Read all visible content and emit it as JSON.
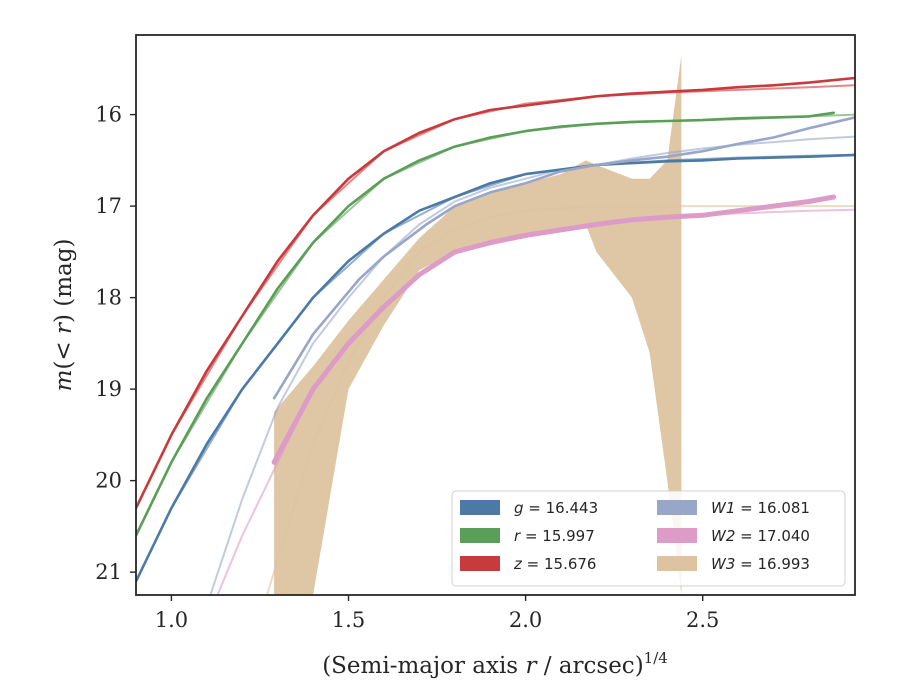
{
  "chart_data": {
    "type": "line",
    "title": "",
    "xlabel": "(Semi-major axis r / arcsec)1/4",
    "xlabel_parts": {
      "pre": "(Semi-major axis ",
      "var": "r",
      "mid": " / arcsec)",
      "sup": "1/4"
    },
    "ylabel": "m(< r) (mag)",
    "xlim": [
      0.9,
      2.93
    ],
    "ylim": [
      21.25,
      15.13
    ],
    "y_inverted": true,
    "grid": false,
    "legend_position": "lower-right",
    "legend_columns": 2,
    "xticks": [
      1.0,
      1.5,
      2.0,
      2.5
    ],
    "xtick_labels": [
      "1.0",
      "1.5",
      "2.0",
      "2.5"
    ],
    "yticks": [
      16,
      17,
      18,
      19,
      20,
      21
    ],
    "ytick_labels": [
      "16",
      "17",
      "18",
      "19",
      "20",
      "21"
    ],
    "series": [
      {
        "name": "g = 16.443",
        "legend_var": "g",
        "legend_value": "16.443",
        "color": "#4c7aa6",
        "data_x": [
          0.9,
          1.0,
          1.1,
          1.2,
          1.3,
          1.4,
          1.5,
          1.6,
          1.7,
          1.8,
          1.9,
          2.0,
          2.1,
          2.2,
          2.3,
          2.4,
          2.5,
          2.6,
          2.7,
          2.8,
          2.93
        ],
        "data_y": [
          21.1,
          20.3,
          19.6,
          19.0,
          18.5,
          18.0,
          17.6,
          17.3,
          17.05,
          16.9,
          16.75,
          16.65,
          16.6,
          16.55,
          16.53,
          16.51,
          16.5,
          16.48,
          16.47,
          16.46,
          16.44
        ],
        "model_x": [
          0.9,
          1.0,
          1.2,
          1.4,
          1.6,
          1.8,
          2.0,
          2.2,
          2.4,
          2.6,
          2.8,
          2.93
        ],
        "model_y": [
          21.1,
          20.3,
          19.0,
          18.0,
          17.3,
          16.9,
          16.65,
          16.55,
          16.5,
          16.47,
          16.45,
          16.44
        ]
      },
      {
        "name": "r = 15.997",
        "legend_var": "r",
        "legend_value": "15.997",
        "color": "#5a9e58",
        "data_x": [
          0.9,
          1.0,
          1.1,
          1.2,
          1.3,
          1.4,
          1.5,
          1.6,
          1.7,
          1.8,
          1.9,
          2.0,
          2.1,
          2.2,
          2.3,
          2.4,
          2.5,
          2.6,
          2.7,
          2.8,
          2.87
        ],
        "data_y": [
          20.6,
          19.8,
          19.1,
          18.5,
          17.9,
          17.4,
          17.0,
          16.7,
          16.5,
          16.35,
          16.25,
          16.18,
          16.13,
          16.1,
          16.08,
          16.07,
          16.06,
          16.04,
          16.03,
          16.02,
          15.98
        ],
        "model_x": [
          0.9,
          1.0,
          1.2,
          1.4,
          1.6,
          1.8,
          2.0,
          2.2,
          2.4,
          2.6,
          2.8,
          2.93
        ],
        "model_y": [
          20.6,
          19.8,
          18.5,
          17.4,
          16.7,
          16.35,
          16.18,
          16.1,
          16.07,
          16.05,
          16.02,
          16.0
        ]
      },
      {
        "name": "z = 15.676",
        "legend_var": "z",
        "legend_value": "15.676",
        "color": "#c93a3c",
        "data_x": [
          0.9,
          1.0,
          1.1,
          1.2,
          1.3,
          1.4,
          1.5,
          1.6,
          1.7,
          1.8,
          1.9,
          2.0,
          2.1,
          2.2,
          2.3,
          2.4,
          2.5,
          2.6,
          2.7,
          2.8,
          2.93
        ],
        "data_y": [
          20.3,
          19.5,
          18.8,
          18.2,
          17.6,
          17.1,
          16.7,
          16.4,
          16.2,
          16.05,
          15.95,
          15.9,
          15.85,
          15.8,
          15.77,
          15.75,
          15.73,
          15.7,
          15.68,
          15.65,
          15.6
        ],
        "model_x": [
          0.9,
          1.0,
          1.2,
          1.4,
          1.6,
          1.8,
          2.0,
          2.2,
          2.4,
          2.6,
          2.8,
          2.93
        ],
        "model_y": [
          20.3,
          19.5,
          18.2,
          17.1,
          16.4,
          16.05,
          15.88,
          15.8,
          15.76,
          15.73,
          15.7,
          15.68
        ]
      },
      {
        "name": "W1 = 16.081",
        "legend_var": "W1",
        "legend_value": "16.081",
        "color": "#98a6c9",
        "data_x": [
          1.29,
          1.4,
          1.53,
          1.6,
          1.72,
          1.8,
          1.9,
          2.0,
          2.1,
          2.2,
          2.3,
          2.4,
          2.5,
          2.6,
          2.7,
          2.8,
          2.93
        ],
        "data_y": [
          19.1,
          18.4,
          17.8,
          17.55,
          17.2,
          17.0,
          16.85,
          16.75,
          16.62,
          16.55,
          16.5,
          16.46,
          16.4,
          16.32,
          16.25,
          16.15,
          16.03
        ],
        "model_x": [
          1.11,
          1.2,
          1.3,
          1.4,
          1.5,
          1.6,
          1.7,
          1.8,
          1.9,
          2.0,
          2.1,
          2.2,
          2.3,
          2.4,
          2.5,
          2.6,
          2.7,
          2.8,
          2.93
        ],
        "model_y": [
          21.25,
          20.2,
          19.2,
          18.5,
          18.0,
          17.55,
          17.2,
          16.95,
          16.8,
          16.7,
          16.6,
          16.55,
          16.48,
          16.42,
          16.37,
          16.33,
          16.3,
          16.27,
          16.24
        ]
      },
      {
        "name": "W2 = 17.040",
        "legend_var": "W2",
        "legend_value": "17.040",
        "color": "#dc9cc7",
        "data_x": [
          1.29,
          1.4,
          1.5,
          1.6,
          1.7,
          1.8,
          1.9,
          2.0,
          2.1,
          2.2,
          2.3,
          2.4,
          2.5,
          2.6,
          2.7,
          2.8,
          2.87
        ],
        "data_y": [
          19.8,
          19.0,
          18.5,
          18.1,
          17.75,
          17.5,
          17.4,
          17.32,
          17.26,
          17.2,
          17.15,
          17.12,
          17.1,
          17.05,
          17.0,
          16.95,
          16.9
        ],
        "model_x": [
          1.13,
          1.2,
          1.3,
          1.4,
          1.5,
          1.6,
          1.7,
          1.8,
          1.9,
          2.0,
          2.2,
          2.4,
          2.6,
          2.8,
          2.93
        ],
        "model_y": [
          21.25,
          20.6,
          19.8,
          19.0,
          18.5,
          18.1,
          17.75,
          17.5,
          17.38,
          17.3,
          17.2,
          17.12,
          17.08,
          17.05,
          17.04
        ]
      },
      {
        "name": "W3 = 16.993",
        "legend_var": "W3",
        "legend_value": "16.993",
        "color": "#ddc3a0",
        "band_x": [
          1.29,
          1.4,
          1.5,
          1.6,
          1.7,
          1.8,
          1.9,
          2.0,
          2.1,
          2.17,
          2.2,
          2.3,
          2.35,
          2.4,
          2.44
        ],
        "band_upper": [
          19.25,
          18.75,
          18.25,
          17.8,
          17.35,
          17.0,
          16.85,
          16.75,
          16.65,
          16.5,
          16.55,
          16.7,
          16.7,
          16.5,
          15.35
        ],
        "band_lower": [
          21.25,
          21.25,
          19.0,
          18.3,
          17.7,
          17.5,
          17.4,
          17.35,
          17.25,
          17.2,
          17.5,
          18.0,
          18.6,
          20.0,
          21.25
        ],
        "model_x": [
          1.27,
          1.4,
          1.5,
          1.6,
          1.7,
          1.8,
          1.9,
          2.0,
          2.2,
          2.4,
          2.6,
          2.8,
          2.93
        ],
        "model_y": [
          21.25,
          19.6,
          18.7,
          18.0,
          17.5,
          17.25,
          17.12,
          17.05,
          17.0,
          17.0,
          17.0,
          17.0,
          17.0
        ]
      }
    ]
  }
}
